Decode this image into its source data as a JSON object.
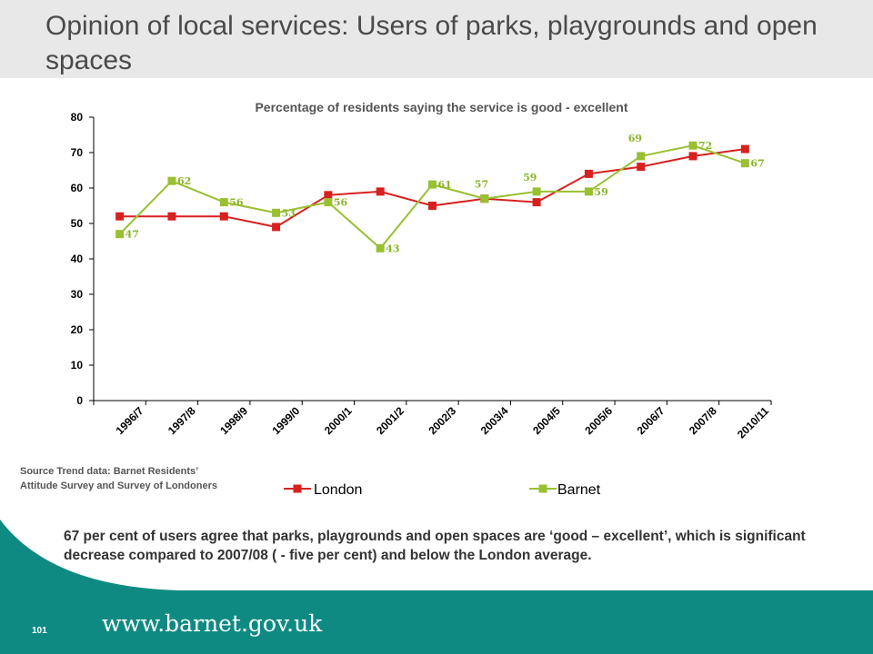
{
  "slide": {
    "title": "Opinion of local services: Users of parks, playgrounds and open spaces",
    "source_lines": [
      "Source Trend data:  Barnet  Residents’",
      "Attitude Survey and Survey of Londoners"
    ],
    "body_text": "67 per cent of users agree that parks, playgrounds and open spaces are ‘good – excellent’, which is significant decrease compared to 2007/08 ( - five per cent) and below the London average.",
    "footer_url": "www.barnet.gov.uk",
    "page_number": "101"
  },
  "colors": {
    "title_band": "#e8e8e8",
    "footer_band": "#0f8a83",
    "london": "#d6211f",
    "barnet": "#99c031",
    "barnet_label": "#8bb52a"
  },
  "chart_data": {
    "type": "line",
    "title": "Percentage of residents saying the service is good - excellent",
    "categories": [
      "1996/7",
      "1997/8",
      "1998/9",
      "1999/0",
      "2000/1",
      "2001/2",
      "2002/3",
      "2003/4",
      "2004/5",
      "2005/6",
      "2006/7",
      "2007/8",
      "2010/11"
    ],
    "x_positions": [
      0.5,
      1.5,
      2.5,
      3.5,
      4.5,
      5.5,
      6.5,
      7.5,
      8.5,
      9.5,
      10.5,
      11.5,
      12.5
    ],
    "ylim": [
      0,
      80
    ],
    "yticks": [
      0,
      10,
      20,
      30,
      40,
      50,
      60,
      70,
      80
    ],
    "grid": false,
    "legend_position": "bottom",
    "series": [
      {
        "name": "London",
        "color": "#d6211f",
        "marker": "square",
        "x": [
          0,
          1,
          2,
          3,
          4,
          5,
          6,
          7,
          8,
          9,
          10,
          11,
          12
        ],
        "values": [
          52,
          52,
          52,
          49,
          58,
          59,
          55,
          57,
          56,
          64,
          66,
          69,
          71
        ],
        "data_labels": []
      },
      {
        "name": "Barnet",
        "color": "#99c031",
        "marker": "square",
        "x": [
          0,
          1,
          2,
          3,
          4,
          5,
          6,
          7,
          8,
          9,
          10,
          11,
          12
        ],
        "values": [
          47,
          62,
          56,
          53,
          56,
          43,
          61,
          57,
          59,
          59,
          69,
          72,
          67
        ],
        "data_labels": [
          "47",
          "62",
          "56",
          "53",
          "56",
          "43",
          "61",
          "57",
          "59",
          "59",
          "69",
          "72",
          "67"
        ]
      }
    ]
  }
}
